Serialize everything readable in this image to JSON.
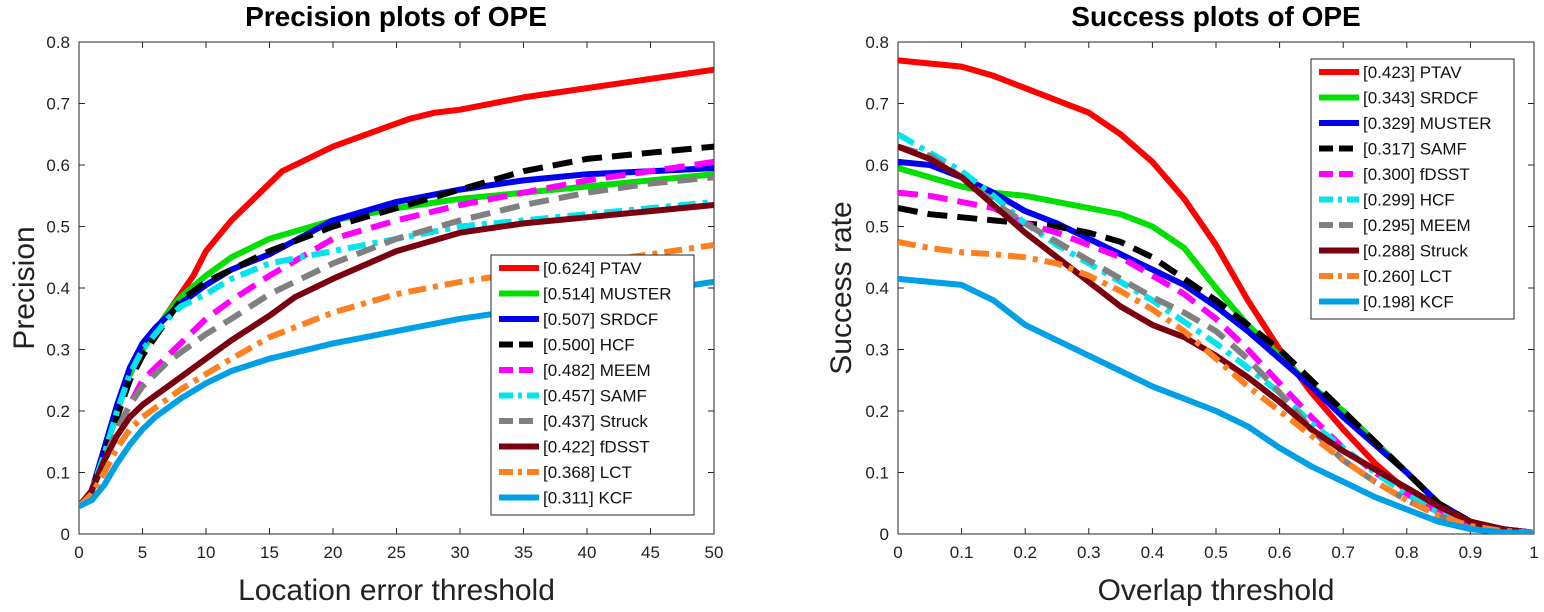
{
  "chart_data": [
    {
      "type": "line",
      "title": "Precision plots of OPE",
      "xlabel": "Location error threshold",
      "ylabel": "Precision",
      "xlim": [
        0,
        50
      ],
      "ylim": [
        0,
        0.8
      ],
      "xticks": [
        "0",
        "5",
        "10",
        "15",
        "20",
        "25",
        "30",
        "35",
        "40",
        "45",
        "50"
      ],
      "yticks": [
        "0",
        "0.1",
        "0.2",
        "0.3",
        "0.4",
        "0.5",
        "0.6",
        "0.7",
        "0.8"
      ],
      "legend_position": "bottom-right",
      "grid": false,
      "series": [
        {
          "name": "[0.624] PTAV",
          "color": "#ff0000",
          "dash": "solid",
          "x": [
            0,
            1,
            2,
            3,
            4,
            5,
            6,
            7,
            8,
            9,
            10,
            12,
            14,
            16,
            18,
            20,
            22,
            24,
            26,
            28,
            30,
            35,
            40,
            45,
            50
          ],
          "y": [
            0.045,
            0.07,
            0.13,
            0.2,
            0.26,
            0.3,
            0.33,
            0.36,
            0.39,
            0.42,
            0.46,
            0.51,
            0.55,
            0.59,
            0.61,
            0.63,
            0.645,
            0.66,
            0.675,
            0.685,
            0.69,
            0.71,
            0.725,
            0.74,
            0.755
          ]
        },
        {
          "name": "[0.514] MUSTER",
          "color": "#00e000",
          "dash": "solid",
          "x": [
            0,
            1,
            2,
            3,
            4,
            5,
            6,
            7,
            8,
            10,
            12,
            15,
            20,
            25,
            30,
            35,
            40,
            45,
            50
          ],
          "y": [
            0.045,
            0.07,
            0.13,
            0.2,
            0.26,
            0.3,
            0.33,
            0.36,
            0.385,
            0.42,
            0.45,
            0.48,
            0.51,
            0.53,
            0.545,
            0.555,
            0.565,
            0.575,
            0.585
          ]
        },
        {
          "name": "[0.507] SRDCF",
          "color": "#0000ee",
          "dash": "solid",
          "x": [
            0,
            1,
            2,
            3,
            4,
            5,
            6,
            7,
            8,
            10,
            12,
            15,
            20,
            25,
            30,
            35,
            40,
            45,
            50
          ],
          "y": [
            0.045,
            0.07,
            0.14,
            0.21,
            0.27,
            0.31,
            0.335,
            0.355,
            0.375,
            0.405,
            0.43,
            0.455,
            0.51,
            0.54,
            0.56,
            0.575,
            0.585,
            0.59,
            0.595
          ]
        },
        {
          "name": "[0.500] HCF",
          "color": "#000000",
          "dash": "dashed",
          "x": [
            0,
            1,
            2,
            3,
            4,
            5,
            6,
            7,
            8,
            10,
            12,
            15,
            20,
            25,
            30,
            35,
            40,
            45,
            50
          ],
          "y": [
            0.045,
            0.07,
            0.13,
            0.19,
            0.25,
            0.29,
            0.32,
            0.35,
            0.38,
            0.41,
            0.43,
            0.46,
            0.5,
            0.53,
            0.56,
            0.59,
            0.61,
            0.62,
            0.63
          ]
        },
        {
          "name": "[0.482] MEEM",
          "color": "#ff00ff",
          "dash": "dashed",
          "x": [
            0,
            1,
            2,
            3,
            4,
            5,
            6,
            7,
            8,
            10,
            12,
            15,
            20,
            25,
            30,
            35,
            40,
            45,
            50
          ],
          "y": [
            0.045,
            0.07,
            0.12,
            0.17,
            0.21,
            0.25,
            0.27,
            0.29,
            0.31,
            0.35,
            0.38,
            0.42,
            0.48,
            0.51,
            0.535,
            0.555,
            0.575,
            0.59,
            0.605
          ]
        },
        {
          "name": "[0.457] SAMF",
          "color": "#00e5ee",
          "dash": "dashdot",
          "x": [
            0,
            1,
            2,
            3,
            4,
            5,
            6,
            7,
            8,
            10,
            12,
            15,
            20,
            25,
            30,
            35,
            40,
            45,
            50
          ],
          "y": [
            0.045,
            0.07,
            0.13,
            0.2,
            0.26,
            0.3,
            0.325,
            0.35,
            0.37,
            0.39,
            0.415,
            0.44,
            0.46,
            0.48,
            0.5,
            0.51,
            0.52,
            0.53,
            0.54
          ]
        },
        {
          "name": "[0.437] Struck",
          "color": "#808080",
          "dash": "dashed",
          "x": [
            0,
            1,
            2,
            3,
            4,
            5,
            6,
            7,
            8,
            10,
            12,
            15,
            20,
            25,
            30,
            35,
            40,
            45,
            50
          ],
          "y": [
            0.045,
            0.07,
            0.12,
            0.17,
            0.21,
            0.24,
            0.26,
            0.28,
            0.295,
            0.325,
            0.35,
            0.39,
            0.44,
            0.48,
            0.51,
            0.535,
            0.555,
            0.57,
            0.58
          ]
        },
        {
          "name": "[0.422] fDSST",
          "color": "#7a0010",
          "dash": "solid",
          "x": [
            0,
            1,
            2,
            3,
            4,
            5,
            6,
            7,
            8,
            10,
            12,
            15,
            17,
            20,
            25,
            30,
            35,
            40,
            45,
            50
          ],
          "y": [
            0.045,
            0.07,
            0.12,
            0.16,
            0.19,
            0.21,
            0.225,
            0.24,
            0.255,
            0.285,
            0.315,
            0.355,
            0.385,
            0.415,
            0.46,
            0.49,
            0.505,
            0.515,
            0.525,
            0.535
          ]
        },
        {
          "name": "[0.368] LCT",
          "color": "#ff8020",
          "dash": "dashdot",
          "x": [
            0,
            1,
            2,
            3,
            4,
            5,
            6,
            7,
            8,
            10,
            12,
            15,
            20,
            25,
            30,
            35,
            40,
            45,
            50
          ],
          "y": [
            0.045,
            0.065,
            0.1,
            0.14,
            0.17,
            0.19,
            0.205,
            0.22,
            0.235,
            0.26,
            0.285,
            0.32,
            0.36,
            0.39,
            0.41,
            0.425,
            0.44,
            0.455,
            0.47
          ]
        },
        {
          "name": "[0.311] KCF",
          "color": "#00a0e6",
          "dash": "solid",
          "x": [
            0,
            1,
            2,
            3,
            4,
            5,
            6,
            7,
            8,
            10,
            12,
            15,
            20,
            25,
            30,
            35,
            40,
            45,
            50
          ],
          "y": [
            0.045,
            0.055,
            0.08,
            0.115,
            0.145,
            0.17,
            0.19,
            0.205,
            0.22,
            0.245,
            0.265,
            0.285,
            0.31,
            0.33,
            0.35,
            0.365,
            0.38,
            0.395,
            0.41
          ]
        }
      ]
    },
    {
      "type": "line",
      "title": "Success plots of OPE",
      "xlabel": "Overlap threshold",
      "ylabel": "Success rate",
      "xlim": [
        0,
        1
      ],
      "ylim": [
        0,
        0.8
      ],
      "xticks": [
        "0",
        "0.1",
        "0.2",
        "0.3",
        "0.4",
        "0.5",
        "0.6",
        "0.7",
        "0.8",
        "0.9",
        "1"
      ],
      "yticks": [
        "0",
        "0.1",
        "0.2",
        "0.3",
        "0.4",
        "0.5",
        "0.6",
        "0.7",
        "0.8"
      ],
      "legend_position": "top-right",
      "grid": false,
      "series": [
        {
          "name": "[0.423] PTAV",
          "color": "#ff0000",
          "dash": "solid",
          "x": [
            0,
            0.05,
            0.1,
            0.15,
            0.2,
            0.25,
            0.3,
            0.35,
            0.4,
            0.45,
            0.5,
            0.55,
            0.6,
            0.65,
            0.7,
            0.75,
            0.8,
            0.85,
            0.9,
            0.95,
            1
          ],
          "y": [
            0.77,
            0.765,
            0.76,
            0.745,
            0.725,
            0.705,
            0.685,
            0.65,
            0.605,
            0.545,
            0.47,
            0.38,
            0.3,
            0.23,
            0.17,
            0.115,
            0.07,
            0.035,
            0.015,
            0.007,
            0.002
          ]
        },
        {
          "name": "[0.343] SRDCF",
          "color": "#00e000",
          "dash": "solid",
          "x": [
            0,
            0.05,
            0.1,
            0.15,
            0.2,
            0.25,
            0.3,
            0.35,
            0.4,
            0.45,
            0.5,
            0.55,
            0.6,
            0.65,
            0.7,
            0.75,
            0.8,
            0.85,
            0.9,
            0.95,
            1
          ],
          "y": [
            0.595,
            0.58,
            0.565,
            0.555,
            0.55,
            0.54,
            0.53,
            0.52,
            0.5,
            0.465,
            0.4,
            0.34,
            0.29,
            0.24,
            0.2,
            0.15,
            0.1,
            0.05,
            0.02,
            0.008,
            0.002
          ]
        },
        {
          "name": "[0.329] MUSTER",
          "color": "#0000ee",
          "dash": "solid",
          "x": [
            0,
            0.05,
            0.1,
            0.15,
            0.2,
            0.25,
            0.3,
            0.35,
            0.4,
            0.45,
            0.5,
            0.55,
            0.6,
            0.65,
            0.7,
            0.75,
            0.8,
            0.85,
            0.9,
            0.95,
            1
          ],
          "y": [
            0.605,
            0.6,
            0.58,
            0.555,
            0.525,
            0.505,
            0.48,
            0.455,
            0.43,
            0.405,
            0.37,
            0.33,
            0.285,
            0.24,
            0.19,
            0.145,
            0.1,
            0.05,
            0.02,
            0.008,
            0.002
          ]
        },
        {
          "name": "[0.317] SAMF",
          "color": "#000000",
          "dash": "dashed",
          "x": [
            0,
            0.05,
            0.1,
            0.15,
            0.2,
            0.25,
            0.3,
            0.35,
            0.4,
            0.45,
            0.5,
            0.55,
            0.6,
            0.65,
            0.7,
            0.75,
            0.8,
            0.85,
            0.9,
            0.95,
            1
          ],
          "y": [
            0.53,
            0.52,
            0.515,
            0.51,
            0.505,
            0.5,
            0.49,
            0.475,
            0.45,
            0.415,
            0.38,
            0.34,
            0.3,
            0.25,
            0.2,
            0.15,
            0.1,
            0.05,
            0.02,
            0.008,
            0.002
          ]
        },
        {
          "name": "[0.300] fDSST",
          "color": "#ff00ff",
          "dash": "dashed",
          "x": [
            0,
            0.05,
            0.1,
            0.15,
            0.2,
            0.25,
            0.3,
            0.35,
            0.4,
            0.45,
            0.5,
            0.55,
            0.6,
            0.65,
            0.7,
            0.75,
            0.8,
            0.85,
            0.9,
            0.95,
            1
          ],
          "y": [
            0.555,
            0.55,
            0.54,
            0.53,
            0.505,
            0.49,
            0.47,
            0.45,
            0.42,
            0.39,
            0.35,
            0.3,
            0.245,
            0.19,
            0.14,
            0.1,
            0.065,
            0.035,
            0.015,
            0.006,
            0.002
          ]
        },
        {
          "name": "[0.299] HCF",
          "color": "#00e5ee",
          "dash": "dashdot",
          "x": [
            0,
            0.05,
            0.1,
            0.15,
            0.2,
            0.25,
            0.3,
            0.35,
            0.4,
            0.45,
            0.5,
            0.55,
            0.6,
            0.65,
            0.7,
            0.75,
            0.8,
            0.85,
            0.9,
            0.95,
            1
          ],
          "y": [
            0.65,
            0.62,
            0.59,
            0.55,
            0.505,
            0.47,
            0.44,
            0.41,
            0.38,
            0.345,
            0.31,
            0.27,
            0.23,
            0.18,
            0.14,
            0.1,
            0.065,
            0.035,
            0.015,
            0.006,
            0.002
          ]
        },
        {
          "name": "[0.295] MEEM",
          "color": "#808080",
          "dash": "dashed",
          "x": [
            0,
            0.05,
            0.1,
            0.15,
            0.2,
            0.25,
            0.3,
            0.35,
            0.4,
            0.45,
            0.5,
            0.55,
            0.6,
            0.65,
            0.7,
            0.75,
            0.8,
            0.85,
            0.9,
            0.95,
            1
          ],
          "y": [
            0.63,
            0.615,
            0.58,
            0.54,
            0.505,
            0.475,
            0.445,
            0.415,
            0.385,
            0.36,
            0.33,
            0.285,
            0.23,
            0.17,
            0.12,
            0.085,
            0.055,
            0.03,
            0.013,
            0.005,
            0.002
          ]
        },
        {
          "name": "[0.288] Struck",
          "color": "#7a0010",
          "dash": "solid",
          "x": [
            0,
            0.05,
            0.1,
            0.15,
            0.2,
            0.25,
            0.3,
            0.35,
            0.4,
            0.45,
            0.5,
            0.55,
            0.6,
            0.65,
            0.7,
            0.75,
            0.8,
            0.85,
            0.9,
            0.95,
            1
          ],
          "y": [
            0.63,
            0.61,
            0.58,
            0.535,
            0.49,
            0.45,
            0.41,
            0.37,
            0.34,
            0.32,
            0.29,
            0.255,
            0.215,
            0.17,
            0.135,
            0.105,
            0.075,
            0.045,
            0.02,
            0.008,
            0.002
          ]
        },
        {
          "name": "[0.260] LCT",
          "color": "#ff8020",
          "dash": "dashdot",
          "x": [
            0,
            0.05,
            0.1,
            0.15,
            0.2,
            0.25,
            0.3,
            0.35,
            0.4,
            0.45,
            0.5,
            0.55,
            0.6,
            0.65,
            0.7,
            0.75,
            0.8,
            0.85,
            0.9,
            0.95,
            1
          ],
          "y": [
            0.475,
            0.465,
            0.458,
            0.455,
            0.45,
            0.44,
            0.42,
            0.395,
            0.365,
            0.33,
            0.285,
            0.24,
            0.2,
            0.16,
            0.12,
            0.085,
            0.055,
            0.03,
            0.013,
            0.005,
            0.002
          ]
        },
        {
          "name": "[0.198] KCF",
          "color": "#00a0e6",
          "dash": "solid",
          "x": [
            0,
            0.05,
            0.1,
            0.15,
            0.2,
            0.25,
            0.3,
            0.35,
            0.4,
            0.45,
            0.5,
            0.55,
            0.6,
            0.65,
            0.7,
            0.75,
            0.8,
            0.85,
            0.9,
            0.95,
            1
          ],
          "y": [
            0.415,
            0.41,
            0.405,
            0.38,
            0.34,
            0.315,
            0.29,
            0.265,
            0.24,
            0.22,
            0.2,
            0.175,
            0.14,
            0.11,
            0.085,
            0.06,
            0.04,
            0.02,
            0.008,
            0.003,
            0.001
          ]
        }
      ]
    }
  ]
}
